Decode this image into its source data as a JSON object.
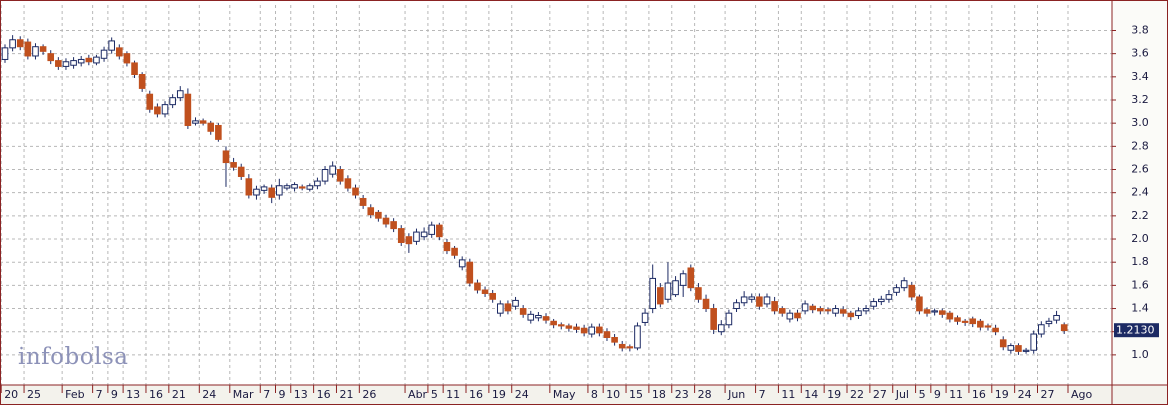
{
  "chart_data": {
    "type": "candlestick",
    "watermark": "infobolsa",
    "categories": [
      "20",
      null,
      null,
      "25",
      null,
      null,
      null,
      null,
      "Feb",
      null,
      null,
      null,
      "7",
      null,
      "9",
      null,
      "13",
      null,
      null,
      "16",
      null,
      null,
      "21",
      null,
      null,
      null,
      "24",
      null,
      null,
      null,
      "Mar",
      null,
      null,
      null,
      "7",
      null,
      "9",
      null,
      "13",
      null,
      null,
      "16",
      null,
      null,
      "21",
      null,
      null,
      "26",
      null,
      null,
      null,
      null,
      null,
      "Abr",
      null,
      null,
      "5",
      null,
      "11",
      null,
      null,
      "16",
      null,
      null,
      "19",
      null,
      null,
      "24",
      null,
      null,
      null,
      null,
      "May",
      null,
      null,
      null,
      null,
      "8",
      null,
      "10",
      null,
      null,
      "15",
      null,
      null,
      "18",
      null,
      null,
      "23",
      null,
      null,
      "28",
      null,
      null,
      null,
      "Jun",
      null,
      null,
      null,
      "7",
      null,
      null,
      "11",
      null,
      null,
      "14",
      null,
      null,
      "19",
      null,
      null,
      "22",
      null,
      null,
      "27",
      null,
      null,
      "Jul",
      null,
      null,
      "5",
      null,
      "9",
      null,
      "11",
      null,
      null,
      "16",
      null,
      null,
      "19",
      null,
      null,
      "24",
      null,
      null,
      "27",
      null,
      null,
      null,
      "Ago"
    ],
    "open": [
      3.55,
      3.65,
      3.72,
      3.7,
      3.58,
      3.66,
      3.6,
      3.54,
      3.49,
      3.5,
      3.52,
      3.56,
      3.52,
      3.56,
      3.63,
      3.65,
      3.6,
      3.52,
      3.42,
      3.25,
      3.14,
      3.08,
      3.16,
      3.22,
      3.25,
      3.0,
      3.02,
      3.0,
      2.98,
      2.76,
      2.66,
      2.62,
      2.52,
      2.38,
      2.42,
      2.44,
      2.38,
      2.44,
      2.44,
      2.45,
      2.43,
      2.46,
      2.5,
      2.56,
      2.6,
      2.52,
      2.44,
      2.35,
      2.27,
      2.23,
      2.18,
      2.15,
      2.09,
      2.02,
      1.98,
      2.02,
      2.04,
      2.12,
      1.97,
      1.92,
      1.76,
      1.8,
      1.62,
      1.56,
      1.53,
      1.36,
      1.44,
      1.42,
      1.4,
      1.3,
      1.32,
      1.33,
      1.29,
      1.26,
      1.25,
      1.24,
      1.23,
      1.18,
      1.24,
      1.2,
      1.15,
      1.09,
      1.07,
      1.06,
      1.28,
      1.4,
      1.58,
      1.48,
      1.52,
      1.6,
      1.75,
      1.58,
      1.48,
      1.4,
      1.2,
      1.26,
      1.4,
      1.45,
      1.48,
      1.5,
      1.44,
      1.46,
      1.4,
      1.31,
      1.36,
      1.38,
      1.42,
      1.4,
      1.39,
      1.36,
      1.39,
      1.36,
      1.34,
      1.38,
      1.42,
      1.46,
      1.48,
      1.54,
      1.58,
      1.6,
      1.5,
      1.39,
      1.37,
      1.38,
      1.36,
      1.32,
      1.29,
      1.31,
      1.29,
      1.25,
      1.23,
      1.13,
      1.04,
      1.08,
      1.03,
      1.04,
      1.18,
      1.27,
      1.3,
      1.26,
      null
    ],
    "high": [
      3.68,
      3.76,
      3.75,
      3.73,
      3.69,
      3.68,
      3.63,
      3.57,
      3.56,
      3.57,
      3.58,
      3.59,
      3.59,
      3.66,
      3.74,
      3.68,
      3.62,
      3.54,
      3.44,
      3.28,
      3.17,
      3.19,
      3.25,
      3.32,
      3.3,
      3.05,
      3.04,
      3.02,
      3.0,
      2.8,
      2.7,
      2.65,
      2.56,
      2.46,
      2.47,
      2.47,
      2.52,
      2.48,
      2.49,
      2.47,
      2.48,
      2.53,
      2.63,
      2.67,
      2.63,
      2.55,
      2.47,
      2.38,
      2.3,
      2.25,
      2.21,
      2.18,
      2.12,
      2.05,
      2.09,
      2.1,
      2.15,
      2.14,
      2.0,
      1.94,
      1.85,
      1.83,
      1.65,
      1.59,
      1.56,
      1.47,
      1.47,
      1.5,
      1.43,
      1.38,
      1.37,
      1.36,
      1.31,
      1.28,
      1.27,
      1.27,
      1.26,
      1.27,
      1.27,
      1.23,
      1.18,
      1.12,
      1.09,
      1.28,
      1.4,
      1.78,
      1.62,
      1.8,
      1.68,
      1.73,
      1.78,
      1.62,
      1.52,
      1.44,
      1.3,
      1.39,
      1.48,
      1.55,
      1.53,
      1.53,
      1.53,
      1.5,
      1.42,
      1.39,
      1.39,
      1.47,
      1.44,
      1.42,
      1.41,
      1.43,
      1.42,
      1.38,
      1.41,
      1.43,
      1.49,
      1.51,
      1.56,
      1.61,
      1.67,
      1.63,
      1.52,
      1.41,
      1.4,
      1.4,
      1.38,
      1.34,
      1.31,
      1.33,
      1.31,
      1.27,
      1.26,
      1.16,
      1.1,
      1.1,
      1.06,
      1.21,
      1.29,
      1.32,
      1.38,
      1.28,
      null
    ],
    "low": [
      3.52,
      3.62,
      3.63,
      3.55,
      3.55,
      3.59,
      3.51,
      3.46,
      3.46,
      3.47,
      3.49,
      3.5,
      3.5,
      3.53,
      3.6,
      3.55,
      3.49,
      3.39,
      3.27,
      3.09,
      3.05,
      3.05,
      3.13,
      3.19,
      2.95,
      2.98,
      2.98,
      2.9,
      2.84,
      2.45,
      2.59,
      2.51,
      2.35,
      2.34,
      2.39,
      2.31,
      2.34,
      2.42,
      2.41,
      2.42,
      2.41,
      2.43,
      2.47,
      2.53,
      2.47,
      2.41,
      2.35,
      2.26,
      2.18,
      2.15,
      2.1,
      2.06,
      1.94,
      1.88,
      1.95,
      1.99,
      2.01,
      1.99,
      1.87,
      1.83,
      1.73,
      1.59,
      1.53,
      1.5,
      1.45,
      1.33,
      1.35,
      1.39,
      1.32,
      1.27,
      1.29,
      1.27,
      1.23,
      1.22,
      1.2,
      1.19,
      1.16,
      1.15,
      1.16,
      1.12,
      1.08,
      1.03,
      1.03,
      1.04,
      1.25,
      1.36,
      1.41,
      1.45,
      1.5,
      1.5,
      1.55,
      1.45,
      1.37,
      1.18,
      1.17,
      1.23,
      1.37,
      1.42,
      1.45,
      1.39,
      1.41,
      1.35,
      1.33,
      1.28,
      1.29,
      1.35,
      1.36,
      1.35,
      1.35,
      1.33,
      1.33,
      1.3,
      1.31,
      1.35,
      1.39,
      1.43,
      1.45,
      1.51,
      1.55,
      1.47,
      1.35,
      1.33,
      1.34,
      1.32,
      1.28,
      1.26,
      1.25,
      1.24,
      1.21,
      1.21,
      1.17,
      1.04,
      1.01,
      1.0,
      1.01,
      1.01,
      1.15,
      1.24,
      1.27,
      1.18,
      null
    ],
    "close": [
      3.65,
      3.72,
      3.66,
      3.58,
      3.66,
      3.62,
      3.54,
      3.49,
      3.53,
      3.54,
      3.55,
      3.53,
      3.57,
      3.63,
      3.71,
      3.58,
      3.52,
      3.42,
      3.3,
      3.12,
      3.08,
      3.16,
      3.22,
      3.28,
      2.98,
      3.02,
      3.0,
      2.93,
      2.86,
      2.66,
      2.62,
      2.54,
      2.38,
      2.43,
      2.45,
      2.36,
      2.46,
      2.46,
      2.47,
      2.44,
      2.46,
      2.5,
      2.6,
      2.63,
      2.5,
      2.44,
      2.38,
      2.29,
      2.21,
      2.18,
      2.13,
      2.09,
      1.97,
      1.96,
      2.06,
      2.06,
      2.12,
      2.02,
      1.9,
      1.86,
      1.82,
      1.62,
      1.56,
      1.53,
      1.48,
      1.44,
      1.38,
      1.47,
      1.35,
      1.35,
      1.34,
      1.3,
      1.26,
      1.25,
      1.23,
      1.22,
      1.19,
      1.24,
      1.19,
      1.15,
      1.11,
      1.06,
      1.06,
      1.25,
      1.36,
      1.66,
      1.44,
      1.62,
      1.64,
      1.7,
      1.58,
      1.48,
      1.4,
      1.22,
      1.26,
      1.36,
      1.45,
      1.5,
      1.5,
      1.42,
      1.5,
      1.38,
      1.36,
      1.36,
      1.32,
      1.44,
      1.39,
      1.38,
      1.38,
      1.4,
      1.36,
      1.33,
      1.38,
      1.4,
      1.46,
      1.48,
      1.52,
      1.58,
      1.64,
      1.5,
      1.38,
      1.36,
      1.38,
      1.35,
      1.31,
      1.29,
      1.28,
      1.27,
      1.24,
      1.24,
      1.2,
      1.07,
      1.08,
      1.03,
      1.04,
      1.18,
      1.26,
      1.29,
      1.34,
      1.21,
      null
    ],
    "up_color": "#ffffff",
    "down_color": "#c0501e",
    "outline_color": "#1c2a64",
    "ylim": [
      0.74,
      4.02
    ],
    "yticks": [
      {
        "value": 1.0,
        "label": "1.0"
      },
      {
        "value": 1.2,
        "label": "1.2"
      },
      {
        "value": 1.4,
        "label": "1.4"
      },
      {
        "value": 1.6,
        "label": "1.6"
      },
      {
        "value": 1.8,
        "label": "1.8"
      },
      {
        "value": 2.0,
        "label": "2.0"
      },
      {
        "value": 2.2,
        "label": "2.2"
      },
      {
        "value": 2.4,
        "label": "2.4"
      },
      {
        "value": 2.6,
        "label": "2.6"
      },
      {
        "value": 2.8,
        "label": "2.8"
      },
      {
        "value": 3.0,
        "label": "3.0"
      },
      {
        "value": 3.2,
        "label": "3.2"
      },
      {
        "value": 3.4,
        "label": "3.4"
      },
      {
        "value": 3.6,
        "label": "3.6"
      },
      {
        "value": 3.8,
        "label": "3.8"
      }
    ],
    "grid": true,
    "last_price": {
      "value": 1.213,
      "label": "1.2130"
    }
  }
}
